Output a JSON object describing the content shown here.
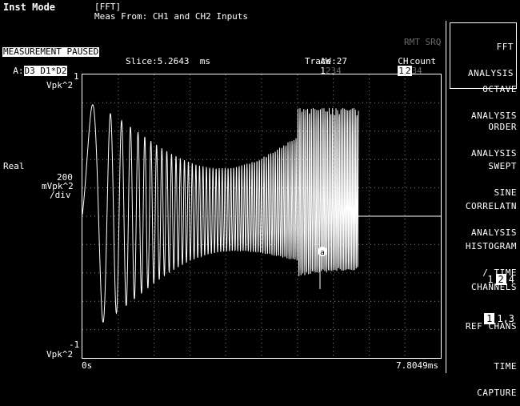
{
  "header": {
    "mode_label": "Inst Mode",
    "mode_value": "[FFT]",
    "meas_from": "Meas From: CH1 and CH2 Inputs",
    "status": "MEASUREMENT PAUSED",
    "rmt_srq": "RMT SRQ",
    "aw_label": "AW",
    "aw_channels": [
      "1",
      "2",
      "3",
      "4"
    ],
    "ch_label": "CH",
    "ch_channels": [
      "1",
      "2",
      "3",
      "4"
    ],
    "trace_id_prefix": "A:",
    "trace_id": "D3 D1*D2",
    "slice": "Slice:5.2643  ms",
    "trace": "Trace:27",
    "count": "count"
  },
  "plot": {
    "y_top": "1",
    "y_top_unit": "Vpk^2",
    "y_bottom": "-1",
    "y_bottom_unit": "Vpk^2",
    "side_label": "Real",
    "scale_value": "200",
    "scale_unit_1": "mVpk^2",
    "scale_unit_2": "/div",
    "x_start": "0s",
    "x_end": "7.8049ms",
    "marker_label": "a"
  },
  "softkeys": [
    {
      "line1": "FFT",
      "line2": "ANALYSIS",
      "active": true
    },
    {
      "line1": "OCTAVE",
      "line2": "ANALYSIS",
      "active": false
    },
    {
      "line1": "ORDER",
      "line2": "ANALYSIS",
      "active": false
    },
    {
      "line1": "SWEPT",
      "line2": "SINE",
      "active": false
    },
    {
      "line1": "CORRELATN",
      "line2": "ANALYSIS",
      "active": false
    },
    {
      "line1": "HISTOGRAM",
      "line2": "/ TIME",
      "active": false
    },
    {
      "line1": "CHANNELS",
      "line2": "",
      "active": false
    },
    {
      "line1": "REF CHANS",
      "line2": "",
      "active": false
    },
    {
      "line1": "TIME",
      "line2": "CAPTURE",
      "active": false
    }
  ],
  "channels_options": [
    "1",
    "2",
    "4"
  ],
  "channels_selected": "2",
  "ref_chans_options": [
    "1",
    "1,3"
  ],
  "ref_chans_selected": "1",
  "colors": {
    "trace": "#ffffff",
    "grid": "#8a8a8a",
    "background": "#000000"
  }
}
